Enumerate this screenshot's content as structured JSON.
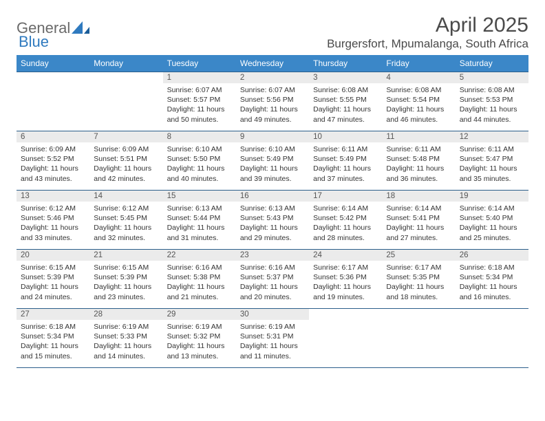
{
  "brand": {
    "part1": "General",
    "part2": "Blue"
  },
  "title": "April 2025",
  "location": "Burgersfort, Mpumalanga, South Africa",
  "colors": {
    "header_bg": "#3b87c8",
    "row_border": "#2a5d8a",
    "daynum_bg": "#ebebeb",
    "text": "#333333",
    "title_text": "#4a4a4a"
  },
  "weekdays": [
    "Sunday",
    "Monday",
    "Tuesday",
    "Wednesday",
    "Thursday",
    "Friday",
    "Saturday"
  ],
  "grid": [
    [
      null,
      null,
      {
        "n": "1",
        "sr": "Sunrise: 6:07 AM",
        "ss": "Sunset: 5:57 PM",
        "d1": "Daylight: 11 hours",
        "d2": "and 50 minutes."
      },
      {
        "n": "2",
        "sr": "Sunrise: 6:07 AM",
        "ss": "Sunset: 5:56 PM",
        "d1": "Daylight: 11 hours",
        "d2": "and 49 minutes."
      },
      {
        "n": "3",
        "sr": "Sunrise: 6:08 AM",
        "ss": "Sunset: 5:55 PM",
        "d1": "Daylight: 11 hours",
        "d2": "and 47 minutes."
      },
      {
        "n": "4",
        "sr": "Sunrise: 6:08 AM",
        "ss": "Sunset: 5:54 PM",
        "d1": "Daylight: 11 hours",
        "d2": "and 46 minutes."
      },
      {
        "n": "5",
        "sr": "Sunrise: 6:08 AM",
        "ss": "Sunset: 5:53 PM",
        "d1": "Daylight: 11 hours",
        "d2": "and 44 minutes."
      }
    ],
    [
      {
        "n": "6",
        "sr": "Sunrise: 6:09 AM",
        "ss": "Sunset: 5:52 PM",
        "d1": "Daylight: 11 hours",
        "d2": "and 43 minutes."
      },
      {
        "n": "7",
        "sr": "Sunrise: 6:09 AM",
        "ss": "Sunset: 5:51 PM",
        "d1": "Daylight: 11 hours",
        "d2": "and 42 minutes."
      },
      {
        "n": "8",
        "sr": "Sunrise: 6:10 AM",
        "ss": "Sunset: 5:50 PM",
        "d1": "Daylight: 11 hours",
        "d2": "and 40 minutes."
      },
      {
        "n": "9",
        "sr": "Sunrise: 6:10 AM",
        "ss": "Sunset: 5:49 PM",
        "d1": "Daylight: 11 hours",
        "d2": "and 39 minutes."
      },
      {
        "n": "10",
        "sr": "Sunrise: 6:11 AM",
        "ss": "Sunset: 5:49 PM",
        "d1": "Daylight: 11 hours",
        "d2": "and 37 minutes."
      },
      {
        "n": "11",
        "sr": "Sunrise: 6:11 AM",
        "ss": "Sunset: 5:48 PM",
        "d1": "Daylight: 11 hours",
        "d2": "and 36 minutes."
      },
      {
        "n": "12",
        "sr": "Sunrise: 6:11 AM",
        "ss": "Sunset: 5:47 PM",
        "d1": "Daylight: 11 hours",
        "d2": "and 35 minutes."
      }
    ],
    [
      {
        "n": "13",
        "sr": "Sunrise: 6:12 AM",
        "ss": "Sunset: 5:46 PM",
        "d1": "Daylight: 11 hours",
        "d2": "and 33 minutes."
      },
      {
        "n": "14",
        "sr": "Sunrise: 6:12 AM",
        "ss": "Sunset: 5:45 PM",
        "d1": "Daylight: 11 hours",
        "d2": "and 32 minutes."
      },
      {
        "n": "15",
        "sr": "Sunrise: 6:13 AM",
        "ss": "Sunset: 5:44 PM",
        "d1": "Daylight: 11 hours",
        "d2": "and 31 minutes."
      },
      {
        "n": "16",
        "sr": "Sunrise: 6:13 AM",
        "ss": "Sunset: 5:43 PM",
        "d1": "Daylight: 11 hours",
        "d2": "and 29 minutes."
      },
      {
        "n": "17",
        "sr": "Sunrise: 6:14 AM",
        "ss": "Sunset: 5:42 PM",
        "d1": "Daylight: 11 hours",
        "d2": "and 28 minutes."
      },
      {
        "n": "18",
        "sr": "Sunrise: 6:14 AM",
        "ss": "Sunset: 5:41 PM",
        "d1": "Daylight: 11 hours",
        "d2": "and 27 minutes."
      },
      {
        "n": "19",
        "sr": "Sunrise: 6:14 AM",
        "ss": "Sunset: 5:40 PM",
        "d1": "Daylight: 11 hours",
        "d2": "and 25 minutes."
      }
    ],
    [
      {
        "n": "20",
        "sr": "Sunrise: 6:15 AM",
        "ss": "Sunset: 5:39 PM",
        "d1": "Daylight: 11 hours",
        "d2": "and 24 minutes."
      },
      {
        "n": "21",
        "sr": "Sunrise: 6:15 AM",
        "ss": "Sunset: 5:39 PM",
        "d1": "Daylight: 11 hours",
        "d2": "and 23 minutes."
      },
      {
        "n": "22",
        "sr": "Sunrise: 6:16 AM",
        "ss": "Sunset: 5:38 PM",
        "d1": "Daylight: 11 hours",
        "d2": "and 21 minutes."
      },
      {
        "n": "23",
        "sr": "Sunrise: 6:16 AM",
        "ss": "Sunset: 5:37 PM",
        "d1": "Daylight: 11 hours",
        "d2": "and 20 minutes."
      },
      {
        "n": "24",
        "sr": "Sunrise: 6:17 AM",
        "ss": "Sunset: 5:36 PM",
        "d1": "Daylight: 11 hours",
        "d2": "and 19 minutes."
      },
      {
        "n": "25",
        "sr": "Sunrise: 6:17 AM",
        "ss": "Sunset: 5:35 PM",
        "d1": "Daylight: 11 hours",
        "d2": "and 18 minutes."
      },
      {
        "n": "26",
        "sr": "Sunrise: 6:18 AM",
        "ss": "Sunset: 5:34 PM",
        "d1": "Daylight: 11 hours",
        "d2": "and 16 minutes."
      }
    ],
    [
      {
        "n": "27",
        "sr": "Sunrise: 6:18 AM",
        "ss": "Sunset: 5:34 PM",
        "d1": "Daylight: 11 hours",
        "d2": "and 15 minutes."
      },
      {
        "n": "28",
        "sr": "Sunrise: 6:19 AM",
        "ss": "Sunset: 5:33 PM",
        "d1": "Daylight: 11 hours",
        "d2": "and 14 minutes."
      },
      {
        "n": "29",
        "sr": "Sunrise: 6:19 AM",
        "ss": "Sunset: 5:32 PM",
        "d1": "Daylight: 11 hours",
        "d2": "and 13 minutes."
      },
      {
        "n": "30",
        "sr": "Sunrise: 6:19 AM",
        "ss": "Sunset: 5:31 PM",
        "d1": "Daylight: 11 hours",
        "d2": "and 11 minutes."
      },
      null,
      null,
      null
    ]
  ]
}
